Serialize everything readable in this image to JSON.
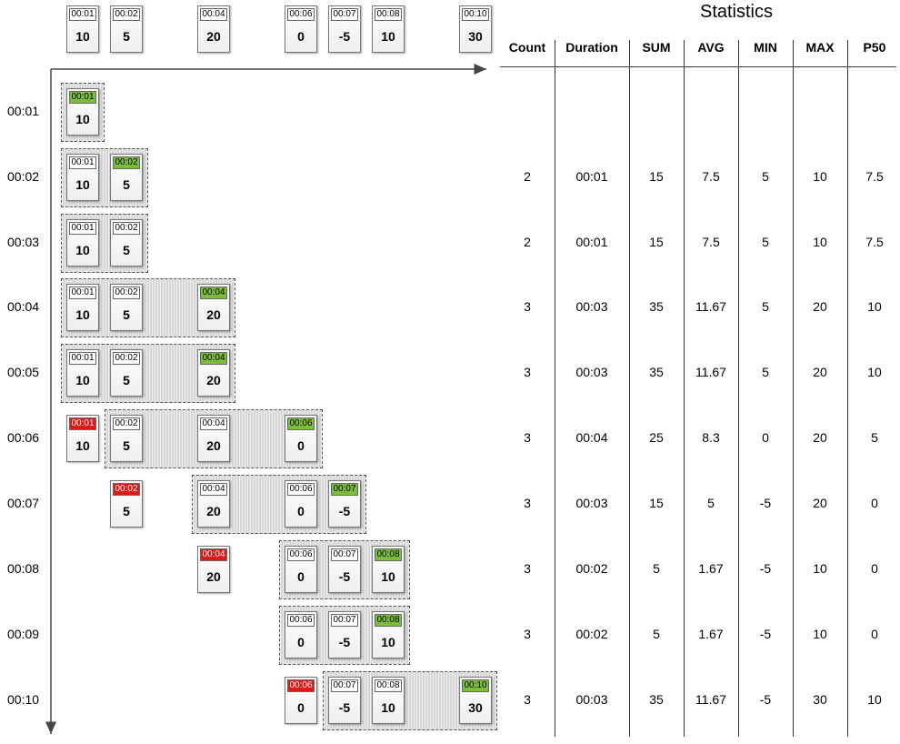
{
  "timeline": [
    {
      "ts": "00:01",
      "value": "10"
    },
    {
      "ts": "00:02",
      "value": "5"
    },
    {
      "ts": "00:04",
      "value": "20"
    },
    {
      "ts": "00:06",
      "value": "0"
    },
    {
      "ts": "00:07",
      "value": "-5"
    },
    {
      "ts": "00:08",
      "value": "10"
    },
    {
      "ts": "00:10",
      "value": "30"
    }
  ],
  "rows": [
    {
      "label": "00:01",
      "cards": [
        {
          "ts": "00:01",
          "value": "10",
          "state": "new"
        }
      ],
      "stats": [
        "",
        "",
        "",
        "",
        "",
        "",
        ""
      ]
    },
    {
      "label": "00:02",
      "cards": [
        {
          "ts": "00:01",
          "value": "10",
          "state": "normal"
        },
        {
          "ts": "00:02",
          "value": "5",
          "state": "new"
        }
      ],
      "stats": [
        "2",
        "00:01",
        "15",
        "7.5",
        "5",
        "10",
        "7.5"
      ]
    },
    {
      "label": "00:03",
      "cards": [
        {
          "ts": "00:01",
          "value": "10",
          "state": "normal"
        },
        {
          "ts": "00:02",
          "value": "5",
          "state": "normal"
        }
      ],
      "stats": [
        "2",
        "00:01",
        "15",
        "7.5",
        "5",
        "10",
        "7.5"
      ]
    },
    {
      "label": "00:04",
      "cards": [
        {
          "ts": "00:01",
          "value": "10",
          "state": "normal"
        },
        {
          "ts": "00:02",
          "value": "5",
          "state": "normal"
        },
        {
          "ts": "00:04",
          "value": "20",
          "state": "new"
        }
      ],
      "stats": [
        "3",
        "00:03",
        "35",
        "11.67",
        "5",
        "20",
        "10"
      ]
    },
    {
      "label": "00:05",
      "cards": [
        {
          "ts": "00:01",
          "value": "10",
          "state": "normal"
        },
        {
          "ts": "00:02",
          "value": "5",
          "state": "normal"
        },
        {
          "ts": "00:04",
          "value": "20",
          "state": "new"
        }
      ],
      "stats": [
        "3",
        "00:03",
        "35",
        "11.67",
        "5",
        "20",
        "10"
      ]
    },
    {
      "label": "00:06",
      "cards": [
        {
          "ts": "00:01",
          "value": "10",
          "state": "old"
        },
        {
          "ts": "00:02",
          "value": "5",
          "state": "normal"
        },
        {
          "ts": "00:04",
          "value": "20",
          "state": "normal"
        },
        {
          "ts": "00:06",
          "value": "0",
          "state": "new"
        }
      ],
      "stats": [
        "3",
        "00:04",
        "25",
        "8.3",
        "0",
        "20",
        "5"
      ]
    },
    {
      "label": "00:07",
      "cards": [
        {
          "ts": "00:02",
          "value": "5",
          "state": "old"
        },
        {
          "ts": "00:04",
          "value": "20",
          "state": "normal"
        },
        {
          "ts": "00:06",
          "value": "0",
          "state": "normal"
        },
        {
          "ts": "00:07",
          "value": "-5",
          "state": "new"
        }
      ],
      "stats": [
        "3",
        "00:03",
        "15",
        "5",
        "-5",
        "20",
        "0"
      ]
    },
    {
      "label": "00:08",
      "cards": [
        {
          "ts": "00:04",
          "value": "20",
          "state": "old"
        },
        {
          "ts": "00:06",
          "value": "0",
          "state": "normal"
        },
        {
          "ts": "00:07",
          "value": "-5",
          "state": "normal"
        },
        {
          "ts": "00:08",
          "value": "10",
          "state": "new"
        }
      ],
      "stats": [
        "3",
        "00:02",
        "5",
        "1.67",
        "-5",
        "10",
        "0"
      ]
    },
    {
      "label": "00:09",
      "cards": [
        {
          "ts": "00:06",
          "value": "0",
          "state": "normal"
        },
        {
          "ts": "00:07",
          "value": "-5",
          "state": "normal"
        },
        {
          "ts": "00:08",
          "value": "10",
          "state": "new"
        }
      ],
      "stats": [
        "3",
        "00:02",
        "5",
        "1.67",
        "-5",
        "10",
        "0"
      ]
    },
    {
      "label": "00:10",
      "cards": [
        {
          "ts": "00:06",
          "value": "0",
          "state": "old"
        },
        {
          "ts": "00:07",
          "value": "-5",
          "state": "normal"
        },
        {
          "ts": "00:08",
          "value": "10",
          "state": "normal"
        },
        {
          "ts": "00:10",
          "value": "30",
          "state": "new"
        }
      ],
      "stats": [
        "3",
        "00:03",
        "35",
        "11.67",
        "-5",
        "30",
        "10"
      ]
    }
  ],
  "statistics": {
    "title": "Statistics",
    "columns": [
      "Count",
      "Duration",
      "SUM",
      "AVG",
      "MIN",
      "MAX",
      "P50"
    ]
  },
  "colors": {
    "new": "#7dbd3b",
    "old": "#e01818"
  }
}
